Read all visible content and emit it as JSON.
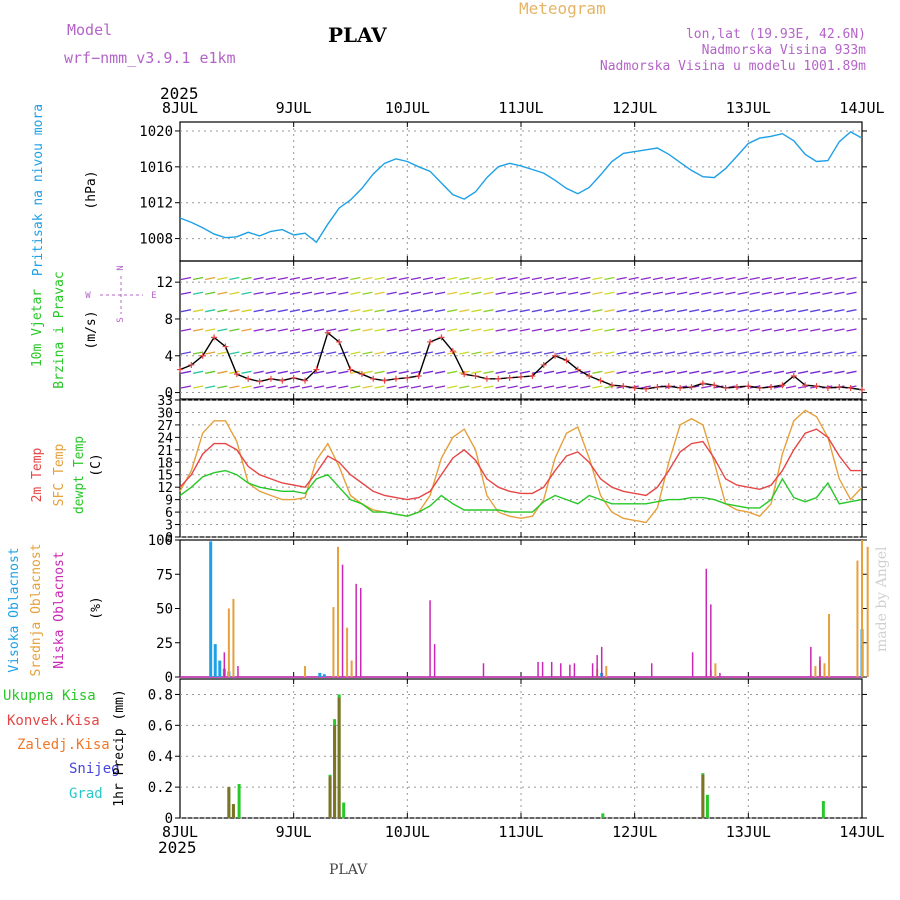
{
  "header": {
    "model_label": "Model",
    "model_name": "wrf−nmm_v3.9.1 e1km",
    "station": "PLAV",
    "meteogram": "Meteogram",
    "lonlat": "lon,lat (19.93E, 42.6N)",
    "elevation": "Nadmorska Visina 933m",
    "model_elevation": "Nadmorska Visina u modelu 1001.89m",
    "year_top": "2025",
    "year_bottom": "2025",
    "footer_station": "PLAV",
    "credit": "made by Angel"
  },
  "colors": {
    "pressure": "#1ea0e6",
    "temp2m": "#e64646",
    "sfc": "#e6a03c",
    "dewpt": "#28c828",
    "high_cloud": "#1ea0e6",
    "mid_cloud": "#e6a03c",
    "low_cloud": "#c828b4",
    "total_precip": "#28c828",
    "conv_precip": "#e64646",
    "frozen_precip": "#f07828",
    "snow": "#4646dc",
    "hail": "#28c8c8",
    "wind_title": "#28c828",
    "compass": "#b464c8"
  },
  "chart_data": [
    {
      "type": "line",
      "title": "",
      "ylabel_lines": [
        "Pritisak na nivou mora",
        "(hPa)"
      ],
      "x_ticks": [
        "8JUL",
        "9JUL",
        "10JUL",
        "11JUL",
        "12JUL",
        "13JUL",
        "14JUL"
      ],
      "ylim": [
        1005.5,
        1021
      ],
      "y_ticks": [
        1008,
        1012,
        1016,
        1020
      ],
      "grid": true,
      "series": [
        {
          "name": "",
          "x": [
            0,
            0.1,
            0.2,
            0.3,
            0.4,
            0.5,
            0.6,
            0.7,
            0.8,
            0.9,
            1.0,
            1.1,
            1.2,
            1.3,
            1.4,
            1.5,
            1.6,
            1.7,
            1.8,
            1.9,
            2.0,
            2.1,
            2.2,
            2.3,
            2.4,
            2.5,
            2.6,
            2.7,
            2.8,
            2.9,
            3.0,
            3.1,
            3.2,
            3.3,
            3.4,
            3.5,
            3.6,
            3.7,
            3.8,
            3.9,
            4.0,
            4.1,
            4.2,
            4.3,
            4.4,
            4.5,
            4.6,
            4.7,
            4.8,
            4.9,
            5.0,
            5.1,
            5.2,
            5.3,
            5.4,
            5.5,
            5.6,
            5.7,
            5.8,
            5.9,
            6.0
          ],
          "values": [
            1010.3,
            1009.8,
            1009.2,
            1008.5,
            1008.1,
            1008.2,
            1008.7,
            1008.3,
            1008.8,
            1009.0,
            1008.4,
            1008.6,
            1007.6,
            1009.6,
            1011.4,
            1012.3,
            1013.6,
            1015.2,
            1016.4,
            1016.9,
            1016.6,
            1016.0,
            1015.5,
            1014.2,
            1012.9,
            1012.4,
            1013.2,
            1014.8,
            1016.0,
            1016.4,
            1016.1,
            1015.7,
            1015.3,
            1014.5,
            1013.6,
            1013.0,
            1013.7,
            1015.1,
            1016.6,
            1017.5,
            1017.7,
            1017.9,
            1018.1,
            1017.4,
            1016.5,
            1015.6,
            1014.9,
            1014.8,
            1015.8,
            1017.2,
            1018.6,
            1019.2,
            1019.4,
            1019.7,
            1018.9,
            1017.4,
            1016.6,
            1016.7,
            1018.8,
            1019.9,
            1019.2
          ]
        }
      ]
    },
    {
      "type": "line",
      "title": "",
      "ylabel_lines": [
        "10m Vjetar",
        "Brzina i Pravac",
        "(m/s)"
      ],
      "compass": {
        "n": "N",
        "w": "W",
        "e": "E",
        "s": "S"
      },
      "ylim": [
        -0.7,
        14.3
      ],
      "y_ticks": [
        0,
        4,
        8,
        12
      ],
      "grid": true,
      "series": [
        {
          "name": "",
          "x": [
            0,
            0.1,
            0.2,
            0.3,
            0.4,
            0.5,
            0.6,
            0.7,
            0.8,
            0.9,
            1.0,
            1.1,
            1.2,
            1.3,
            1.4,
            1.5,
            1.6,
            1.7,
            1.8,
            1.9,
            2.0,
            2.1,
            2.2,
            2.3,
            2.4,
            2.5,
            2.6,
            2.7,
            2.8,
            2.9,
            3.0,
            3.1,
            3.2,
            3.3,
            3.4,
            3.5,
            3.6,
            3.7,
            3.8,
            3.9,
            4.0,
            4.1,
            4.2,
            4.3,
            4.4,
            4.5,
            4.6,
            4.7,
            4.8,
            4.9,
            5.0,
            5.1,
            5.2,
            5.3,
            5.4,
            5.5,
            5.6,
            5.7,
            5.8,
            5.9,
            6.0
          ],
          "values": [
            2.5,
            3.0,
            4.0,
            6.0,
            5.0,
            2.0,
            1.5,
            1.2,
            1.5,
            1.3,
            1.6,
            1.3,
            2.5,
            6.5,
            5.5,
            2.5,
            2.0,
            1.5,
            1.3,
            1.5,
            1.6,
            1.8,
            5.5,
            6.0,
            4.5,
            2.0,
            1.8,
            1.5,
            1.5,
            1.6,
            1.7,
            1.8,
            3.0,
            4.0,
            3.5,
            2.5,
            1.8,
            1.3,
            0.8,
            0.7,
            0.5,
            0.4,
            0.6,
            0.7,
            0.5,
            0.6,
            1.0,
            0.8,
            0.5,
            0.6,
            0.7,
            0.5,
            0.6,
            0.8,
            1.8,
            0.8,
            0.7,
            0.5,
            0.6,
            0.5,
            0.3
          ]
        }
      ]
    },
    {
      "type": "line",
      "title": "",
      "ylabel_lines": [
        "2m Temp",
        "SFC Temp",
        "dewpt Temp",
        "(C)"
      ],
      "ylim": [
        0,
        33
      ],
      "y_ticks": [
        0,
        3,
        6,
        9,
        12,
        15,
        18,
        21,
        24,
        27,
        30,
        33
      ],
      "grid": true,
      "series": [
        {
          "name": "2m Temp",
          "x": [
            0,
            0.1,
            0.2,
            0.3,
            0.4,
            0.5,
            0.6,
            0.7,
            0.8,
            0.9,
            1.0,
            1.1,
            1.2,
            1.3,
            1.4,
            1.5,
            1.6,
            1.7,
            1.8,
            1.9,
            2.0,
            2.1,
            2.2,
            2.3,
            2.4,
            2.5,
            2.6,
            2.7,
            2.8,
            2.9,
            3.0,
            3.1,
            3.2,
            3.3,
            3.4,
            3.5,
            3.6,
            3.7,
            3.8,
            3.9,
            4.0,
            4.1,
            4.2,
            4.3,
            4.4,
            4.5,
            4.6,
            4.7,
            4.8,
            4.9,
            5.0,
            5.1,
            5.2,
            5.3,
            5.4,
            5.5,
            5.6,
            5.7,
            5.8,
            5.9,
            6.0
          ],
          "values": [
            12,
            15,
            20,
            22.5,
            22.5,
            21,
            17,
            15,
            14,
            13,
            12.5,
            12,
            15.5,
            19.5,
            18,
            15,
            13,
            11,
            10,
            9.5,
            9,
            9.5,
            11,
            15,
            19,
            21,
            18.5,
            14,
            12,
            11,
            10.5,
            10.5,
            12,
            16,
            19.5,
            20.5,
            18,
            14,
            12,
            11,
            10.5,
            10,
            12,
            16,
            20.5,
            22.5,
            23,
            19,
            14,
            12.5,
            12,
            11.5,
            12.5,
            16,
            21,
            25,
            26,
            24,
            19.5,
            16,
            16
          ]
        },
        {
          "name": "SFC Temp",
          "x": [
            0,
            0.1,
            0.2,
            0.3,
            0.4,
            0.5,
            0.6,
            0.7,
            0.8,
            0.9,
            1.0,
            1.1,
            1.2,
            1.3,
            1.4,
            1.5,
            1.6,
            1.7,
            1.8,
            1.9,
            2.0,
            2.1,
            2.2,
            2.3,
            2.4,
            2.5,
            2.6,
            2.7,
            2.8,
            2.9,
            3.0,
            3.1,
            3.2,
            3.3,
            3.4,
            3.5,
            3.6,
            3.7,
            3.8,
            3.9,
            4.0,
            4.1,
            4.2,
            4.3,
            4.4,
            4.5,
            4.6,
            4.7,
            4.8,
            4.9,
            5.0,
            5.1,
            5.2,
            5.3,
            5.4,
            5.5,
            5.6,
            5.7,
            5.8,
            5.9,
            6.0
          ],
          "values": [
            11,
            16,
            25,
            28,
            28,
            23,
            13,
            11,
            10,
            9,
            9,
            9.5,
            18.5,
            22.5,
            17,
            10,
            8,
            6.5,
            6,
            5.5,
            5,
            6,
            10,
            19,
            24,
            26,
            21,
            10,
            6,
            5,
            4.5,
            5,
            9,
            19,
            25,
            26.5,
            19,
            10,
            6,
            4.5,
            4,
            3.5,
            7,
            18,
            27,
            28.5,
            27,
            18,
            8,
            6.5,
            6,
            5,
            8,
            20,
            28,
            30.5,
            29,
            24,
            14,
            9,
            12
          ]
        },
        {
          "name": "dewpt Temp",
          "x": [
            0,
            0.1,
            0.2,
            0.3,
            0.4,
            0.5,
            0.6,
            0.7,
            0.8,
            0.9,
            1.0,
            1.1,
            1.2,
            1.3,
            1.4,
            1.5,
            1.6,
            1.7,
            1.8,
            1.9,
            2.0,
            2.1,
            2.2,
            2.3,
            2.4,
            2.5,
            2.6,
            2.7,
            2.8,
            2.9,
            3.0,
            3.1,
            3.2,
            3.3,
            3.4,
            3.5,
            3.6,
            3.7,
            3.8,
            3.9,
            4.0,
            4.1,
            4.2,
            4.3,
            4.4,
            4.5,
            4.6,
            4.7,
            4.8,
            4.9,
            5.0,
            5.1,
            5.2,
            5.3,
            5.4,
            5.5,
            5.6,
            5.7,
            5.8,
            5.9,
            6.0
          ],
          "values": [
            10,
            12,
            14.5,
            15.5,
            16,
            15,
            13,
            12,
            11.5,
            11,
            11,
            10.5,
            14,
            15,
            12,
            9,
            8,
            6,
            6,
            5.5,
            5,
            6,
            7.5,
            10,
            8,
            6.5,
            6.5,
            6.5,
            6.5,
            6,
            6,
            6,
            8.5,
            10,
            9,
            8,
            10,
            9,
            8,
            8,
            8,
            8,
            8.5,
            9,
            9,
            9.5,
            9.5,
            9,
            8,
            7.5,
            7,
            7,
            9,
            14,
            9.5,
            8.5,
            9.5,
            13,
            8,
            8.5,
            9
          ]
        }
      ]
    },
    {
      "type": "bar",
      "title": "",
      "ylabel_lines": [
        "Visoka Oblacnost",
        "Srednja Oblacnost",
        "Niska Oblacnost",
        "(%)"
      ],
      "ylim": [
        0,
        100
      ],
      "y_ticks": [
        0,
        25,
        50,
        75,
        100
      ],
      "grid": false,
      "series": [
        {
          "name": "Visoka Oblacnost",
          "x": [
            0.27,
            0.31,
            0.35,
            0.39,
            0.43,
            1.23,
            1.27,
            3.71,
            6.0
          ],
          "values": [
            99,
            24,
            12,
            6,
            4,
            3,
            2,
            3,
            35
          ]
        },
        {
          "name": "Srednja Oblacnost",
          "x": [
            0.43,
            0.47,
            1.1,
            1.35,
            1.39,
            1.47,
            1.51,
            3.67,
            3.75,
            4.67,
            4.71,
            5.59,
            5.63,
            5.67,
            5.71,
            5.96,
            6.0,
            6.05
          ],
          "values": [
            50,
            57,
            8,
            51,
            95,
            36,
            12,
            6,
            8,
            5,
            10,
            8,
            12,
            10,
            46,
            85,
            100,
            95
          ]
        },
        {
          "name": "Niska Oblacnost",
          "x": [
            0.39,
            0.51,
            1.43,
            1.55,
            1.59,
            2.2,
            2.24,
            2.67,
            3.15,
            3.19,
            3.27,
            3.35,
            3.43,
            3.47,
            3.63,
            3.67,
            3.71,
            4.15,
            4.51,
            4.63,
            4.67,
            4.75,
            5.55,
            5.63
          ],
          "values": [
            18,
            8,
            82,
            68,
            65,
            56,
            24,
            10,
            11,
            11,
            11,
            10,
            9,
            10,
            10,
            16,
            22,
            10,
            18,
            79,
            53,
            3,
            22,
            15
          ]
        }
      ]
    },
    {
      "type": "bar",
      "title": "",
      "ylabel_lines": [
        "1hr Precip (mm)"
      ],
      "legend": [
        "Ukupna Kisa",
        "Konvek.Kisa",
        "Zaledj.Kisa",
        "Snijeg",
        "Grad"
      ],
      "x_ticks": [
        "8JUL",
        "9JUL",
        "10JUL",
        "11JUL",
        "12JUL",
        "13JUL",
        "14JUL"
      ],
      "ylim": [
        0,
        0.9
      ],
      "y_ticks": [
        0,
        0.2,
        0.4,
        0.6,
        0.8
      ],
      "grid": true,
      "series": [
        {
          "name": "Ukupna Kisa",
          "x": [
            0.43,
            0.47,
            0.52,
            1.32,
            1.36,
            1.4,
            1.44,
            3.72,
            4.6,
            4.64,
            5.66
          ],
          "values": [
            0.2,
            0.09,
            0.22,
            0.28,
            0.64,
            0.8,
            0.1,
            0.03,
            0.29,
            0.15,
            0.11
          ]
        },
        {
          "name": "Konvek.Kisa",
          "x": [
            0.43,
            0.47,
            1.32,
            1.36,
            1.4,
            4.6
          ],
          "values": [
            0.2,
            0.09,
            0.27,
            0.6,
            0.78,
            0.28
          ]
        }
      ]
    }
  ]
}
